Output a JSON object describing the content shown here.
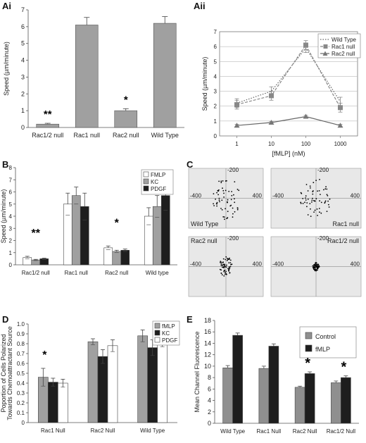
{
  "panels": {
    "ai": "Ai",
    "aii": "Aii",
    "b": "B",
    "c": "C",
    "d": "D",
    "e": "E"
  },
  "colors": {
    "light_gray": "#d6d6d6",
    "mid_gray": "#a0a0a0",
    "dark_gray": "#8f8f8f",
    "black": "#1e1e1e",
    "white": "#ffffff",
    "plot_bg": "#e8e8e8"
  },
  "chart_data": [
    {
      "id": "ai",
      "type": "bar",
      "ylabel": "Speed (µm/minute)",
      "ylim": [
        0,
        7
      ],
      "yticks": [
        0,
        1,
        2,
        3,
        4,
        5,
        6,
        7
      ],
      "categories": [
        "Rac1/2 null",
        "Rac1 null",
        "Rac2 null",
        "Wild Type"
      ],
      "values": [
        0.2,
        6.1,
        1.0,
        6.2
      ],
      "errors": [
        0.05,
        0.45,
        0.12,
        0.4
      ],
      "annotations": [
        "**",
        "",
        "*",
        ""
      ]
    },
    {
      "id": "aii",
      "type": "line",
      "xlabel": "[fMLP] (nM)",
      "ylabel": "Speed (µm/minute)",
      "x": [
        "1",
        "10",
        "100",
        "1000"
      ],
      "ylim": [
        0,
        7
      ],
      "yticks": [
        0,
        1,
        2,
        3,
        4,
        5,
        6,
        7
      ],
      "grid": true,
      "legend": "top-right",
      "series": [
        {
          "name": "Wild Type",
          "values": [
            2.2,
            3.0,
            5.9,
            2.3
          ],
          "errors": [
            0.3,
            0.3,
            0.3,
            0.3
          ],
          "style": "dotted"
        },
        {
          "name": "Rac1 null",
          "values": [
            2.1,
            2.7,
            6.1,
            1.9
          ],
          "errors": [
            0.3,
            0.3,
            0.3,
            0.3
          ],
          "style": "dashed-square"
        },
        {
          "name": "Rac2 null",
          "values": [
            0.7,
            0.9,
            1.3,
            0.7
          ],
          "errors": [
            0.08,
            0.08,
            0.08,
            0.08
          ],
          "style": "solid-triangle"
        }
      ]
    },
    {
      "id": "b",
      "type": "bar",
      "ylabel": "Speed (µm/minute)",
      "ylim": [
        0,
        8
      ],
      "yticks": [
        0,
        1,
        2,
        3,
        4,
        5,
        6,
        7,
        8
      ],
      "categories": [
        "Rac1/2 null",
        "Rac1 null",
        "Rac2 null",
        "Wild type"
      ],
      "legend": "top-right",
      "series": [
        {
          "name": "FMLP",
          "values": [
            0.6,
            5.0,
            1.4,
            4.0
          ],
          "errors": [
            0.1,
            0.9,
            0.15,
            0.7
          ]
        },
        {
          "name": "KC",
          "values": [
            0.4,
            5.7,
            1.1,
            4.8
          ],
          "errors": [
            0.05,
            0.7,
            0.1,
            0.9
          ]
        },
        {
          "name": "PDGF",
          "values": [
            0.5,
            4.8,
            1.2,
            5.7
          ],
          "errors": [
            0.05,
            1.1,
            0.1,
            1.2
          ]
        }
      ],
      "annotations": [
        "**",
        "",
        "*",
        ""
      ]
    },
    {
      "id": "c",
      "type": "scatter",
      "xlim": [
        -400,
        400
      ],
      "ylim": [
        -200,
        200
      ],
      "tick_labels": [
        "-200",
        "-400",
        "400"
      ],
      "subplots": [
        {
          "label": "Wild Type",
          "spread": 150
        },
        {
          "label": "Rac1 null",
          "spread": 140
        },
        {
          "label": "Rac2 null",
          "spread": 70
        },
        {
          "label": "Rac1/2 null",
          "spread": 30
        }
      ]
    },
    {
      "id": "d",
      "type": "bar",
      "ylabel": "Poportion of Cells Polarized Towards Chemoattractant Source",
      "ylim": [
        0,
        1
      ],
      "yticks": [
        0,
        0.1,
        0.2,
        0.3,
        0.4,
        0.5,
        0.6,
        0.7,
        0.8,
        0.9,
        1
      ],
      "categories": [
        "Rac1 Null",
        "Rac2 Null",
        "Wild Type"
      ],
      "legend": "top-right",
      "series": [
        {
          "name": "fMLP",
          "values": [
            0.46,
            0.82,
            0.88
          ],
          "errors": [
            0.09,
            0.03,
            0.06
          ]
        },
        {
          "name": "KC",
          "values": [
            0.41,
            0.67,
            0.76
          ],
          "errors": [
            0.04,
            0.07,
            0.08
          ]
        },
        {
          "name": "PDGF",
          "values": [
            0.4,
            0.78,
            0.85
          ],
          "errors": [
            0.04,
            0.06,
            0.08
          ]
        }
      ],
      "annotations": [
        "*",
        "",
        ""
      ]
    },
    {
      "id": "e",
      "type": "bar",
      "ylabel": "Mean Channel Fluorescence",
      "ylim": [
        0,
        18
      ],
      "yticks": [
        0,
        2,
        4,
        6,
        8,
        10,
        12,
        14,
        16,
        18
      ],
      "categories": [
        "Wild Type",
        "Rac1 Null",
        "Rac2 Null",
        "Rac1/2 Null"
      ],
      "legend": "top-right",
      "series": [
        {
          "name": "Control",
          "values": [
            9.7,
            9.6,
            6.3,
            7.1
          ],
          "errors": [
            0.4,
            0.4,
            0.2,
            0.3
          ]
        },
        {
          "name": "fMLP",
          "values": [
            15.4,
            13.5,
            8.7,
            8.0
          ],
          "errors": [
            0.4,
            0.4,
            0.3,
            0.3
          ]
        }
      ],
      "annotations": [
        "",
        "",
        "*",
        "*"
      ]
    }
  ]
}
